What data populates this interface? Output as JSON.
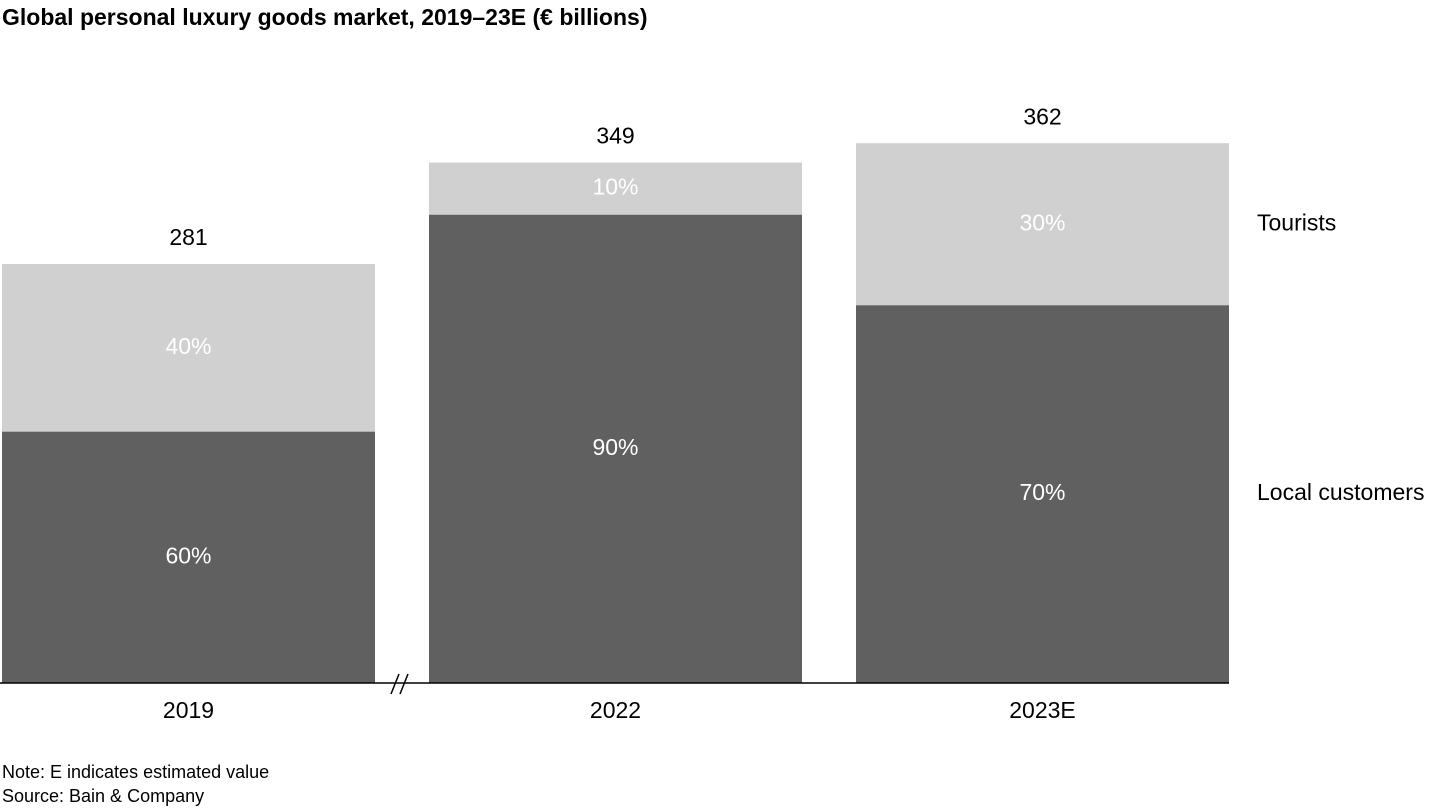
{
  "chart_data": {
    "type": "bar",
    "stacked": true,
    "title": "Global personal luxury goods market, 2019–23E (€ billions)",
    "categories": [
      "2019",
      "2022",
      "2023E"
    ],
    "totals": [
      281,
      349,
      362
    ],
    "series": [
      {
        "name": "Local customers",
        "shares": [
          60,
          90,
          70
        ],
        "value_labels": [
          "60%",
          "90%",
          "70%"
        ],
        "color": "#606060",
        "label_color": "#ffffff"
      },
      {
        "name": "Tourists",
        "shares": [
          40,
          10,
          30
        ],
        "value_labels": [
          "40%",
          "10%",
          "30%"
        ],
        "color": "#d0d0d0",
        "label_color": "#ffffff"
      }
    ],
    "total_labels": [
      "281",
      "349",
      "362"
    ],
    "axis_break": "between 2019 and 2022",
    "grid": false,
    "legend": "right, direct labels"
  },
  "notes": {
    "note": "Note: E indicates estimated value",
    "source": "Source: Bain & Company"
  }
}
